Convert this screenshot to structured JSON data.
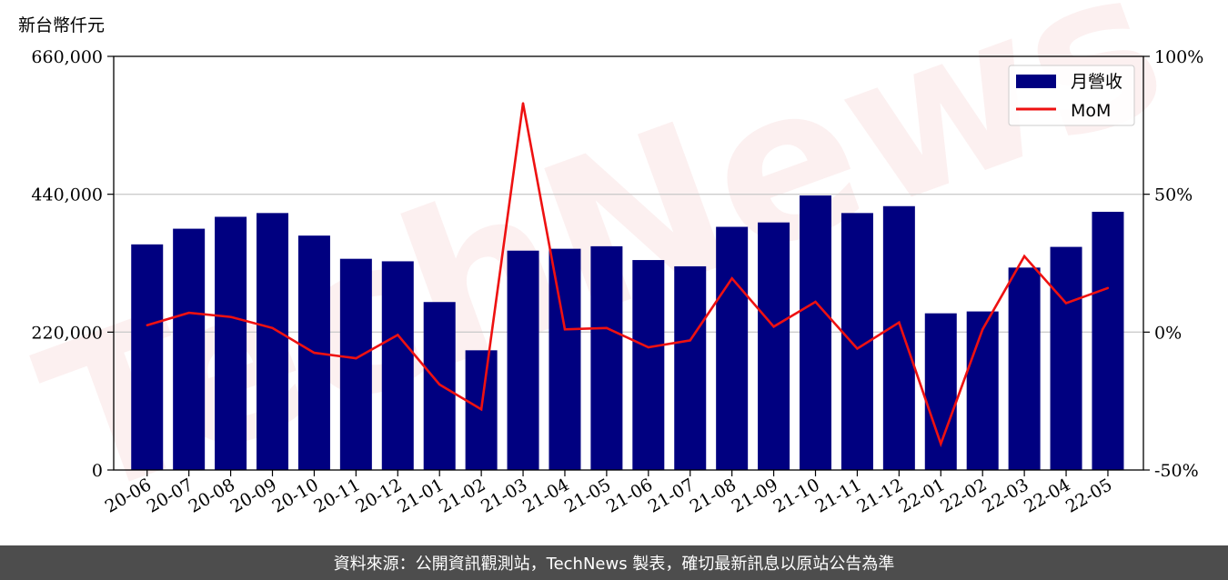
{
  "footer": {
    "source_text": "資料來源：公開資訊觀測站，TechNews 製表，確切最新訊息以原站公告為準"
  },
  "watermark": {
    "text": "TechNews"
  },
  "colors": {
    "bar": "#000080",
    "line": "#ee1111",
    "grid": "#cccccc",
    "footer_bg": "#4d4d4d"
  },
  "chart_data": {
    "type": "bar",
    "unit_label": "新台幣仟元",
    "categories": [
      "20-06",
      "20-07",
      "20-08",
      "20-09",
      "20-10",
      "20-11",
      "20-12",
      "21-01",
      "21-02",
      "21-03",
      "21-04",
      "21-05",
      "21-06",
      "21-07",
      "21-08",
      "21-09",
      "21-10",
      "21-11",
      "21-12",
      "22-01",
      "22-02",
      "22-03",
      "22-04",
      "22-05"
    ],
    "series": [
      {
        "name": "月營收",
        "type": "bar",
        "axis": "left",
        "values": [
          360000,
          385000,
          404000,
          410000,
          374000,
          337000,
          333000,
          268000,
          191000,
          350000,
          353000,
          357000,
          335000,
          325000,
          388000,
          395000,
          438000,
          410000,
          421000,
          250000,
          253000,
          323000,
          356000,
          412000
        ]
      },
      {
        "name": "MoM",
        "type": "line",
        "axis": "right",
        "unit": "%",
        "values": [
          2.5,
          7,
          5.5,
          1.5,
          -7.5,
          -9.5,
          -1,
          -19,
          -28,
          83,
          1,
          1.5,
          -5.5,
          -3,
          19.5,
          2,
          11,
          -6,
          3.5,
          -40.5,
          1,
          27.5,
          10.5,
          16
        ]
      }
    ],
    "y_left": {
      "lim": [
        0,
        660000
      ],
      "ticks": [
        0,
        220000,
        440000,
        660000
      ],
      "tick_labels": [
        "0",
        "220,000",
        "440,000",
        "660,000"
      ]
    },
    "y_right": {
      "lim": [
        -50,
        100
      ],
      "ticks": [
        -50,
        0,
        50,
        100
      ],
      "tick_labels": [
        "-50%",
        "0%",
        "50%",
        "100%"
      ]
    },
    "grid": "horizontal",
    "legend_position": "top-right"
  }
}
